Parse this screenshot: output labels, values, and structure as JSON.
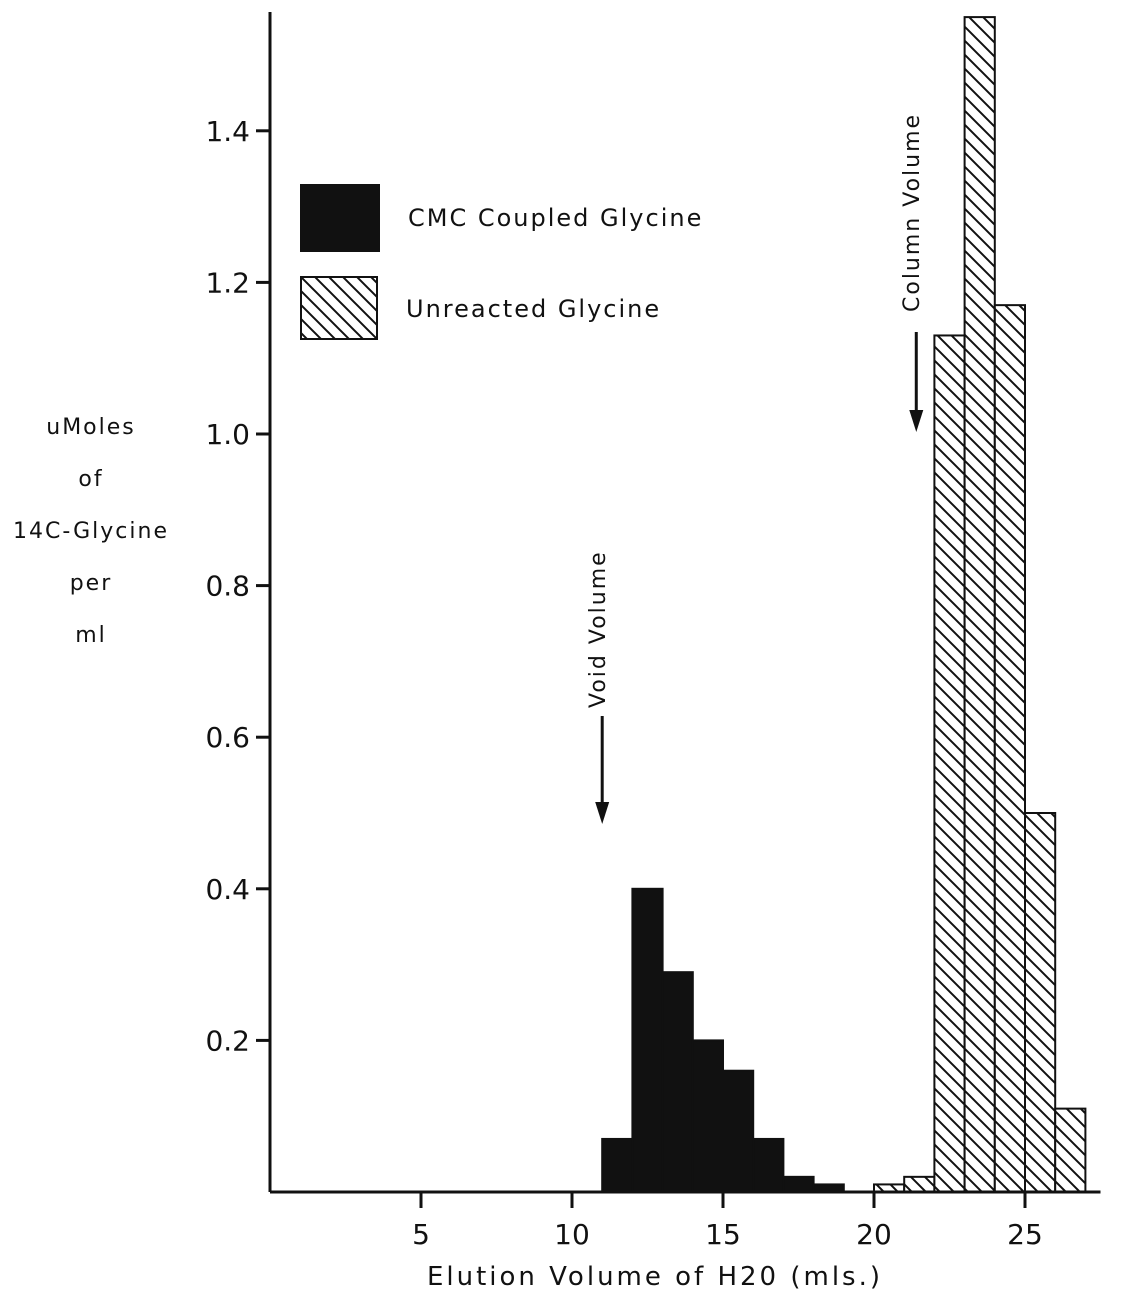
{
  "chart_data": {
    "type": "bar",
    "xlabel": "Elution Volume of H20 (mls.)",
    "ylabel": [
      "uMoles",
      "of",
      "14C-Glycine",
      "per",
      "ml"
    ],
    "xlim": [
      0,
      27.5
    ],
    "ylim": [
      0,
      1.55
    ],
    "xticks": [
      5,
      10,
      15,
      20,
      25
    ],
    "yticks": [
      0.2,
      0.4,
      0.6,
      0.8,
      1.0,
      1.2,
      1.4
    ],
    "ytick_labels": [
      "0.2",
      "0.4",
      "0.6",
      "0.8",
      "1.0",
      "1.2",
      "1.4"
    ],
    "bin_width": 1,
    "series": [
      {
        "name": "CMC Coupled Glycine",
        "fill": "solid",
        "color": "#111111",
        "x": [
          11,
          12,
          13,
          14,
          15,
          16,
          17,
          18
        ],
        "values": [
          0.07,
          0.4,
          0.29,
          0.2,
          0.16,
          0.07,
          0.02,
          0.01
        ]
      },
      {
        "name": "Unreacted Glycine",
        "fill": "hatched",
        "color": "#111111",
        "x": [
          20,
          21,
          22,
          23,
          24,
          25,
          26
        ],
        "values": [
          0.01,
          0.02,
          1.13,
          1.55,
          1.17,
          0.5,
          0.11
        ]
      }
    ],
    "annotations": [
      {
        "text": "Void Volume",
        "x": 11
      },
      {
        "text": "Column Volume",
        "x": 21.4
      }
    ],
    "legend_position": "top-left"
  }
}
